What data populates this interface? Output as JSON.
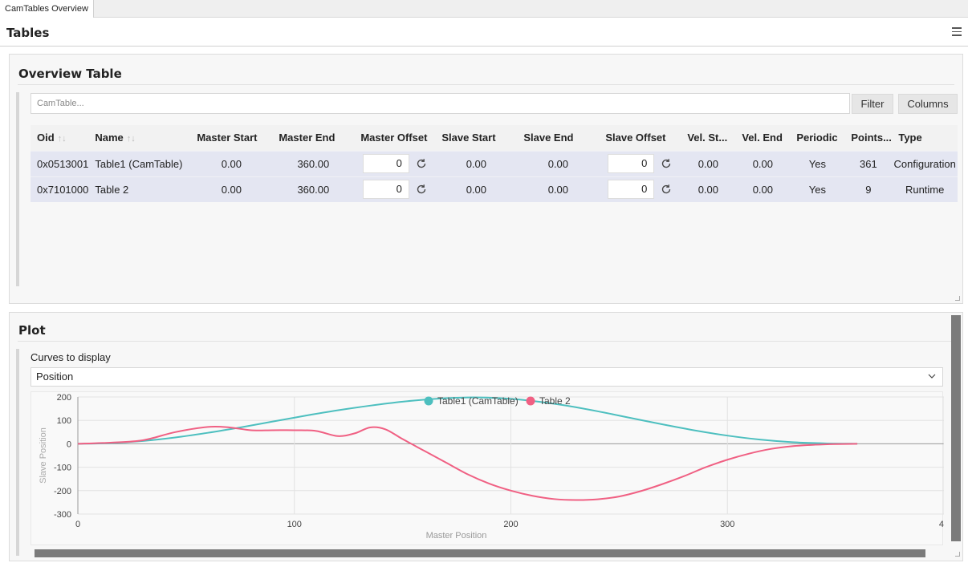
{
  "window": {
    "tab_title": "CamTables Overview"
  },
  "header": {
    "title": "Tables"
  },
  "overview": {
    "title": "Overview Table",
    "search_placeholder": "CamTable...",
    "filter_label": "Filter",
    "columns_label": "Columns",
    "headers": [
      "Oid",
      "Name",
      "Master Start",
      "Master End",
      "Master Offset",
      "Slave Start",
      "Slave End",
      "Slave Offset",
      "Vel. St...",
      "Vel. End",
      "Periodic",
      "Points...",
      "Type"
    ],
    "rows": [
      {
        "oid": "0x0513001",
        "name": "Table1 (CamTable)",
        "master_start": "0.00",
        "master_end": "360.00",
        "master_offset": "0",
        "slave_start": "0.00",
        "slave_end": "0.00",
        "slave_offset": "0",
        "vel_start": "0.00",
        "vel_end": "0.00",
        "periodic": "Yes",
        "points": "361",
        "type": "Configuration"
      },
      {
        "oid": "0x7101000",
        "name": "Table 2",
        "master_start": "0.00",
        "master_end": "360.00",
        "master_offset": "0",
        "slave_start": "0.00",
        "slave_end": "0.00",
        "slave_offset": "0",
        "vel_start": "0.00",
        "vel_end": "0.00",
        "periodic": "Yes",
        "points": "9",
        "type": "Runtime"
      }
    ]
  },
  "plot": {
    "title": "Plot",
    "curves_label": "Curves to display",
    "curves_value": "Position"
  },
  "chart_data": {
    "type": "line",
    "title": "",
    "xlabel": "Master Position",
    "ylabel": "Slave Position",
    "xlim": [
      0,
      400
    ],
    "ylim": [
      -300,
      200
    ],
    "xticks": [
      "0",
      "100",
      "200",
      "300",
      "4"
    ],
    "yticks": [
      "200",
      "100",
      "0",
      "-100",
      "-200",
      "-300"
    ],
    "legend_position": "top-center",
    "grid": true,
    "series": [
      {
        "name": "Table1 (CamTable)",
        "color": "#4dbfbf",
        "x": [
          0,
          15,
          30,
          45,
          60,
          75,
          90,
          105,
          120,
          135,
          150,
          165,
          180,
          195,
          210,
          225,
          240,
          255,
          270,
          285,
          300,
          315,
          330,
          345,
          360
        ],
        "y": [
          0,
          3,
          12,
          27,
          47,
          70,
          95,
          120,
          143,
          163,
          180,
          192,
          198,
          195,
          183,
          164,
          139,
          111,
          83,
          57,
          35,
          18,
          7,
          2,
          0
        ]
      },
      {
        "name": "Table 2",
        "color": "#f06083",
        "x": [
          0,
          15,
          30,
          45,
          60,
          70,
          80,
          90,
          100,
          110,
          120,
          128,
          135,
          142,
          150,
          160,
          170,
          180,
          190,
          200,
          210,
          220,
          230,
          240,
          250,
          260,
          270,
          280,
          290,
          300,
          310,
          320,
          330,
          340,
          350,
          360
        ],
        "y": [
          0,
          5,
          15,
          50,
          72,
          70,
          58,
          58,
          58,
          55,
          33,
          45,
          70,
          62,
          20,
          -30,
          -80,
          -130,
          -170,
          -200,
          -222,
          -236,
          -240,
          -237,
          -225,
          -202,
          -172,
          -138,
          -100,
          -68,
          -42,
          -22,
          -10,
          -4,
          -1,
          0
        ]
      }
    ]
  }
}
